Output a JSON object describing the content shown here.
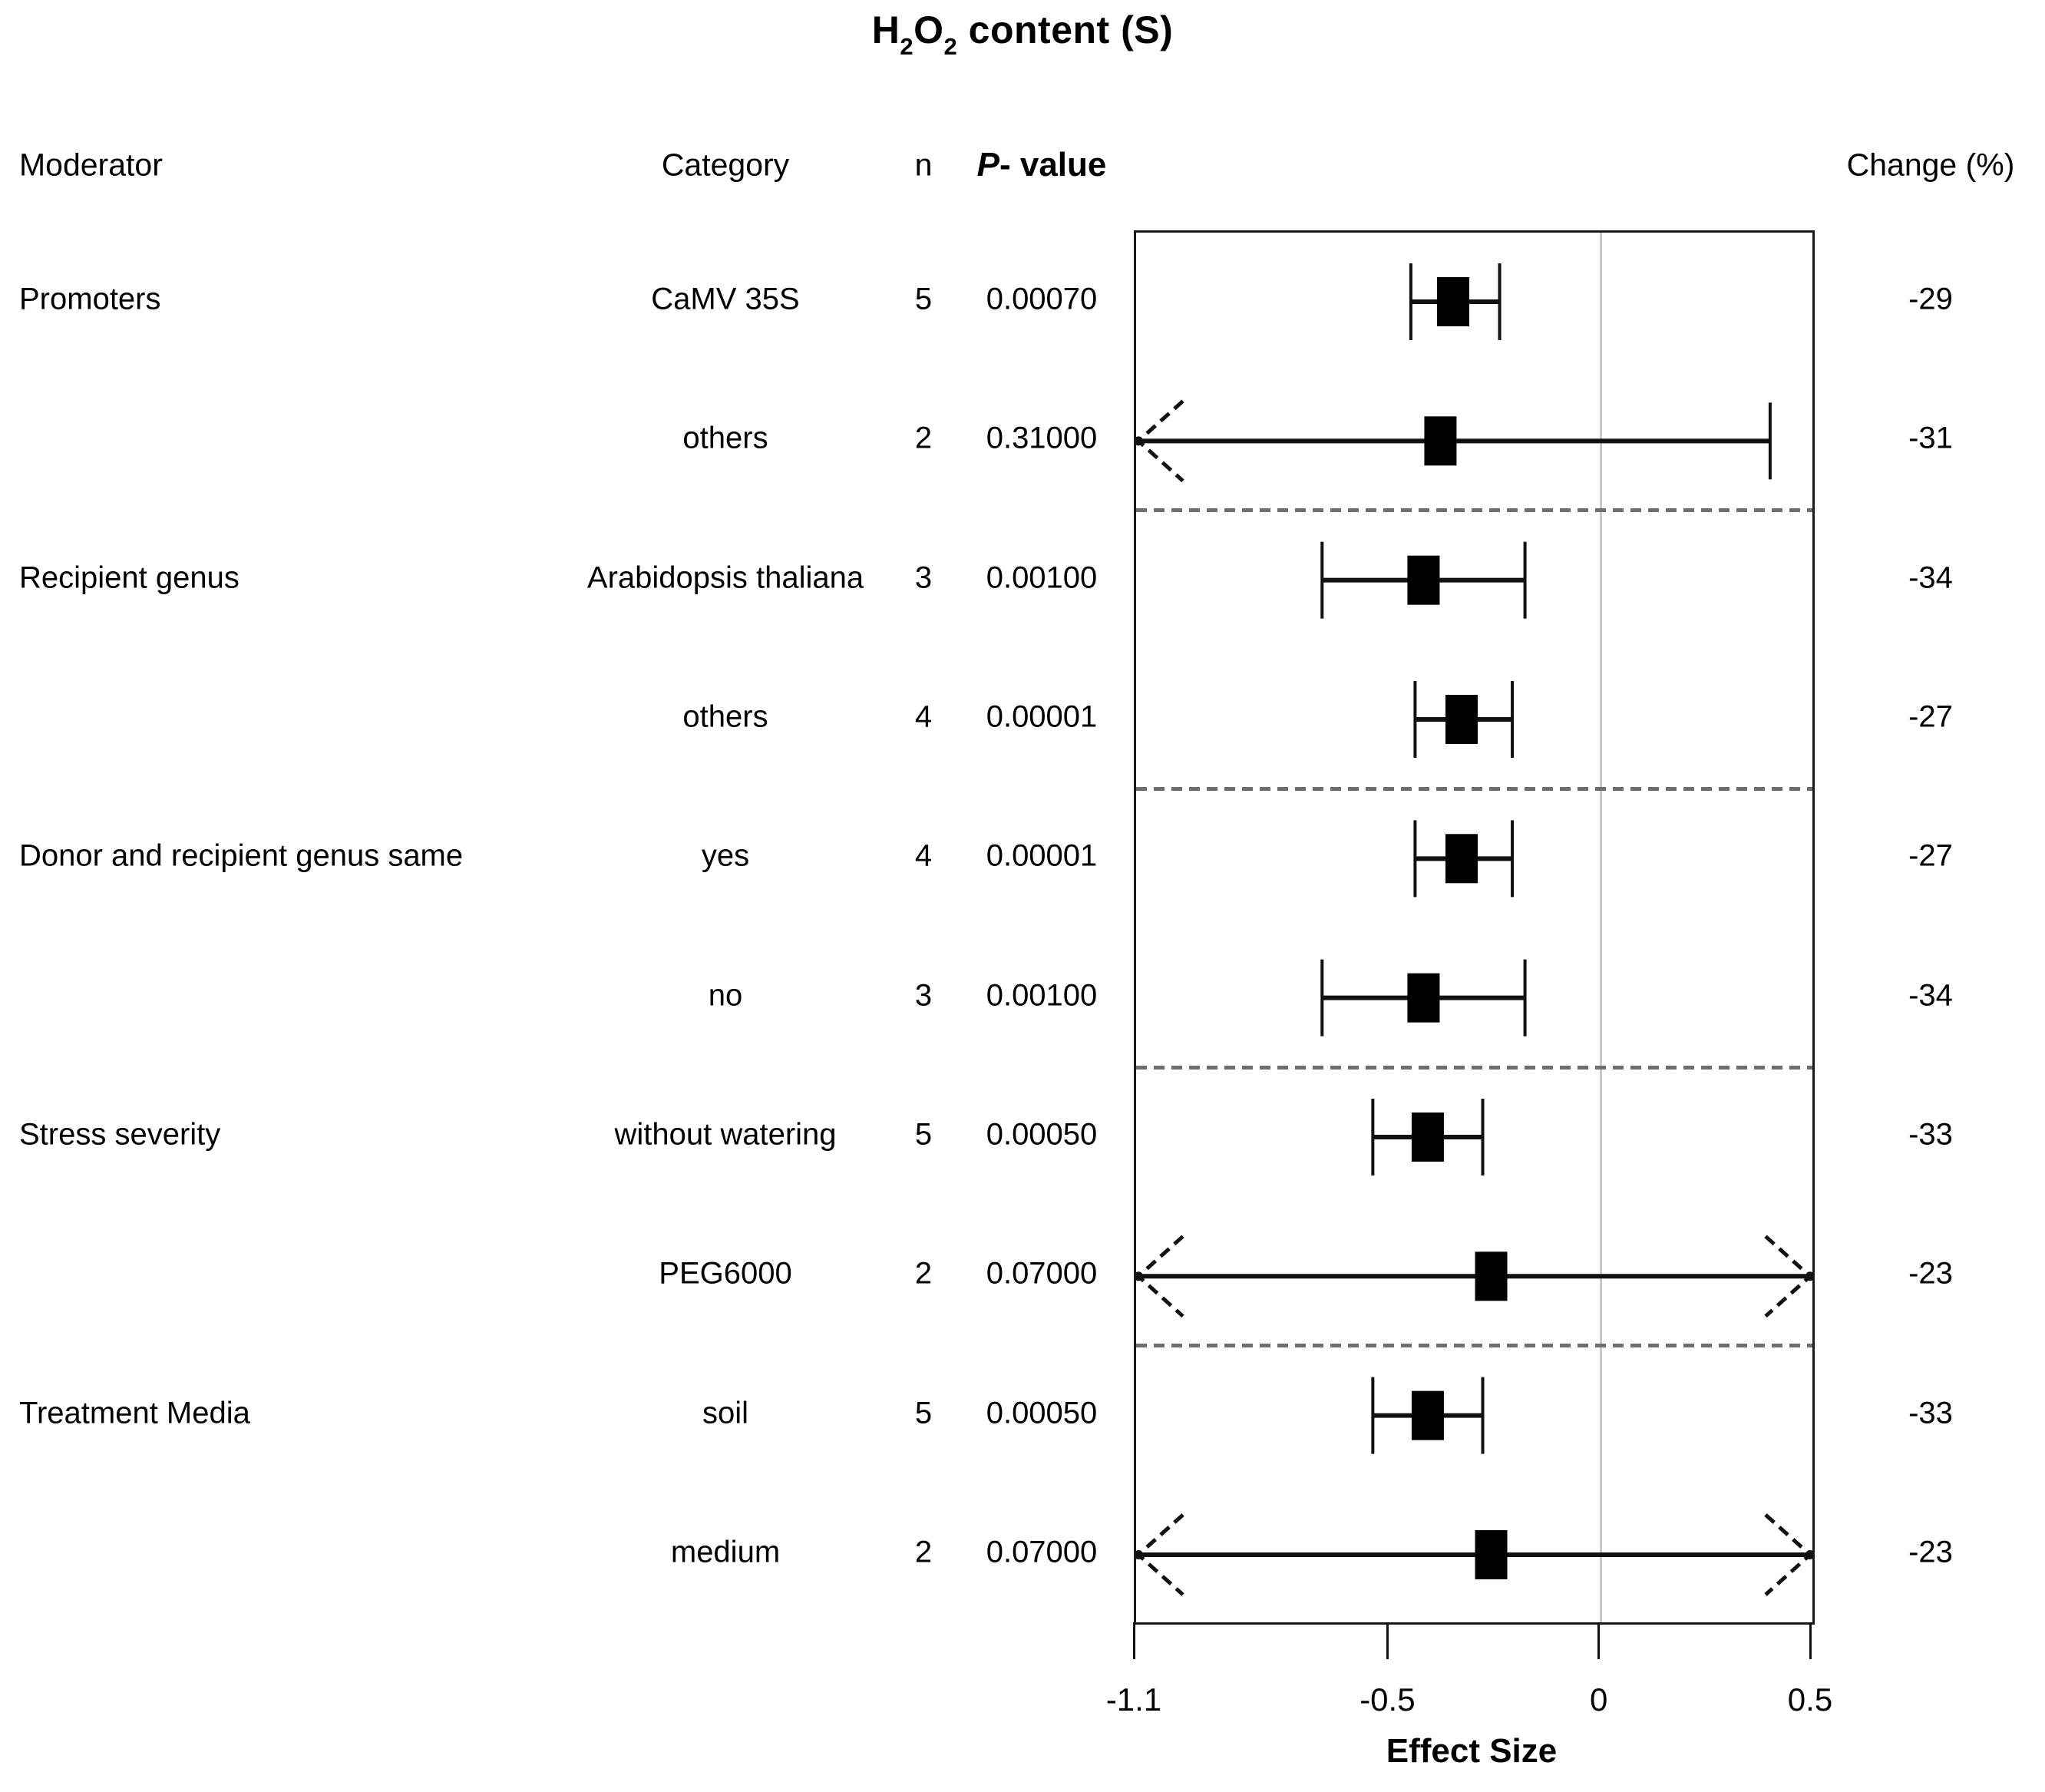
{
  "title_parts": {
    "h": "H",
    "s1": "2",
    "o": "O",
    "s2": "2",
    "rest": " content (S)"
  },
  "headers": {
    "moderator": "Moderator",
    "category": "Category",
    "n": "n",
    "p_italic": "P",
    "p_rest": "- value",
    "change": "Change (%)"
  },
  "chart_data": {
    "type": "forest",
    "title": "H2O2 content (S)",
    "xlabel": "Effect Size",
    "xlim": [
      -1.1,
      0.5
    ],
    "zero_line": 0,
    "ticks": [
      {
        "value": -1.1,
        "label": "-1.1"
      },
      {
        "value": -0.5,
        "label": "-0.5"
      },
      {
        "value": 0,
        "label": "0"
      },
      {
        "value": 0.5,
        "label": "0.5"
      }
    ],
    "columns": [
      "Moderator",
      "Category",
      "n",
      "P- value",
      "Change (%)"
    ],
    "rows": [
      {
        "moderator": "Promoters",
        "category": "CaMV 35S",
        "n": "5",
        "p_value": "0.00070",
        "effect": -0.35,
        "ci_low": -0.45,
        "ci_high": -0.24,
        "arrow_low": false,
        "arrow_high": false,
        "change": "-29"
      },
      {
        "moderator": "",
        "category": "others",
        "n": "2",
        "p_value": "0.31000",
        "effect": -0.38,
        "ci_low": -1.1,
        "ci_high": 0.4,
        "arrow_low": true,
        "arrow_high": false,
        "change": "-31"
      },
      {
        "moderator": "Recipient genus",
        "category": "Arabidopsis thaliana",
        "n": "3",
        "p_value": "0.00100",
        "effect": -0.42,
        "ci_low": -0.66,
        "ci_high": -0.18,
        "arrow_low": false,
        "arrow_high": false,
        "change": "-34"
      },
      {
        "moderator": "",
        "category": "others",
        "n": "4",
        "p_value": "0.00001",
        "effect": -0.33,
        "ci_low": -0.44,
        "ci_high": -0.21,
        "arrow_low": false,
        "arrow_high": false,
        "change": "-27"
      },
      {
        "moderator": "Donor and recipient genus same",
        "category": "yes",
        "n": "4",
        "p_value": "0.00001",
        "effect": -0.33,
        "ci_low": -0.44,
        "ci_high": -0.21,
        "arrow_low": false,
        "arrow_high": false,
        "change": "-27"
      },
      {
        "moderator": "",
        "category": "no",
        "n": "3",
        "p_value": "0.00100",
        "effect": -0.42,
        "ci_low": -0.66,
        "ci_high": -0.18,
        "arrow_low": false,
        "arrow_high": false,
        "change": "-34"
      },
      {
        "moderator": "Stress severity",
        "category": "without watering",
        "n": "5",
        "p_value": "0.00050",
        "effect": -0.41,
        "ci_low": -0.54,
        "ci_high": -0.28,
        "arrow_low": false,
        "arrow_high": false,
        "change": "-33"
      },
      {
        "moderator": "",
        "category": "PEG6000",
        "n": "2",
        "p_value": "0.07000",
        "effect": -0.26,
        "ci_low": -1.1,
        "ci_high": 0.5,
        "arrow_low": true,
        "arrow_high": true,
        "change": "-23"
      },
      {
        "moderator": "Treatment Media",
        "category": "soil",
        "n": "5",
        "p_value": "0.00050",
        "effect": -0.41,
        "ci_low": -0.54,
        "ci_high": -0.28,
        "arrow_low": false,
        "arrow_high": false,
        "change": "-33"
      },
      {
        "moderator": "",
        "category": "medium",
        "n": "2",
        "p_value": "0.07000",
        "effect": -0.26,
        "ci_low": -1.1,
        "ci_high": 0.5,
        "arrow_low": true,
        "arrow_high": true,
        "change": "-23"
      }
    ],
    "group_separators_after_rows": [
      1,
      3,
      5,
      7
    ]
  }
}
